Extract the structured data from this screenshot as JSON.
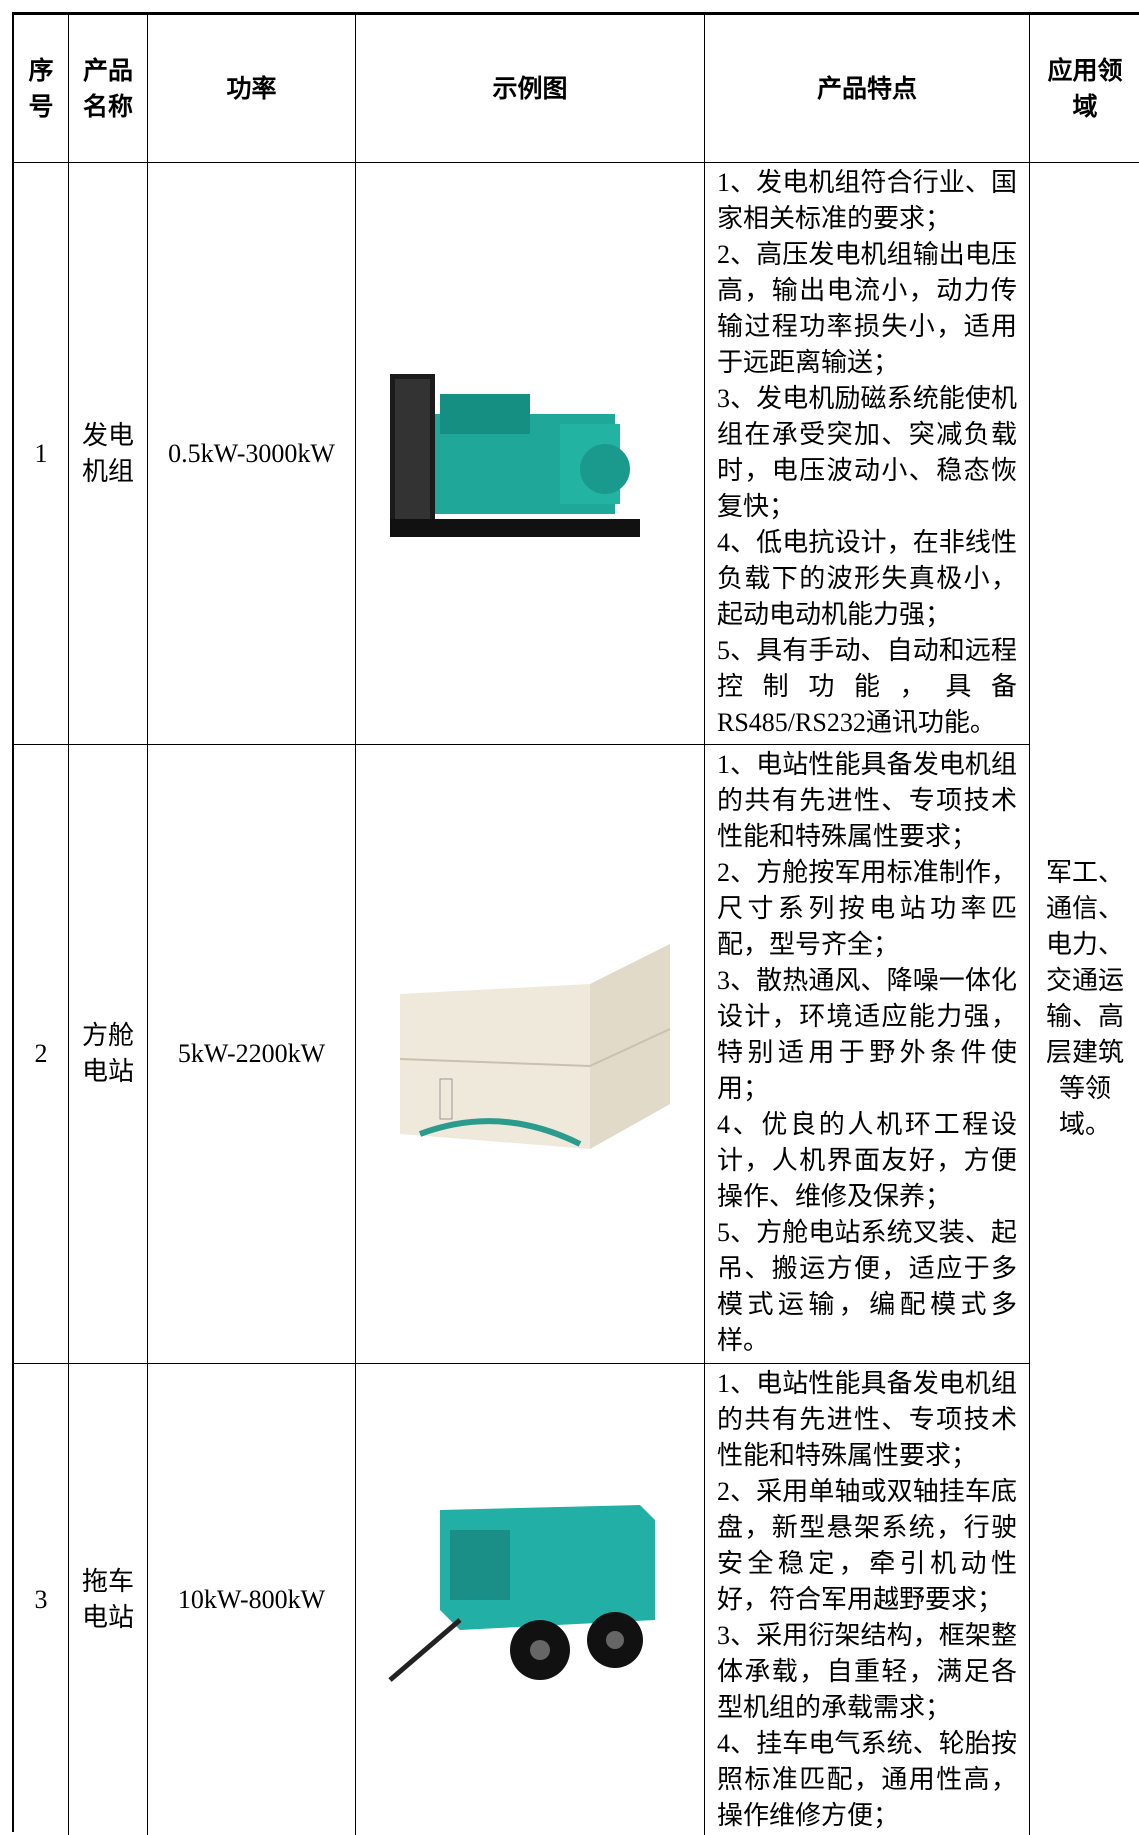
{
  "table": {
    "headers": [
      "序号",
      "产品名称",
      "功率",
      "示例图",
      "产品特点",
      "应用领域"
    ],
    "rows": [
      {
        "no": "1",
        "name": "发电机组",
        "power": "0.5kW-3000kW",
        "features": [
          "1、发电机组符合行业、国家相关标准的要求；",
          "2、高压发电机组输出电压高，输出电流小，动力传输过程功率损失小，适用于远距离输送；",
          "3、发电机励磁系统能使机组在承受突加、突减负载时，电压波动小、稳态恢复快；",
          "4、低电抗设计，在非线性负载下的波形失真极小，起动电动机能力强；",
          "5、具有手动、自动和远程控制功能，具备RS485/RS232通讯功能。"
        ]
      },
      {
        "no": "2",
        "name": "方舱电站",
        "power": "5kW-2200kW",
        "features": [
          "1、电站性能具备发电机组的共有先进性、专项技术性能和特殊属性要求；",
          "2、方舱按军用标准制作，尺寸系列按电站功率匹配，型号齐全；",
          "3、散热通风、降噪一体化设计，环境适应能力强，特别适用于野外条件使用；",
          "4、优良的人机环工程设计，人机界面友好，方便操作、维修及保养；",
          "5、方舱电站系统叉装、起吊、搬运方便，适应于多模式运输，编配模式多样。"
        ]
      },
      {
        "no": "3",
        "name": "拖车电站",
        "power": "10kW-800kW",
        "features": [
          "1、电站性能具备发电机组的共有先进性、专项技术性能和特殊属性要求；",
          "2、采用单轴或双轴挂车底盘，新型悬架系统，行驶安全稳定，牵引机动性好，符合军用越野要求；",
          "3、采用衍架结构，框架整体承载，自重轻，满足各型机组的承载需求；",
          "4、挂车电气系统、轮胎按照标准匹配，通用性高，操作维修方便；"
        ]
      }
    ],
    "application": "军工、通信、电力、交通运输、高层建筑等领域。"
  }
}
